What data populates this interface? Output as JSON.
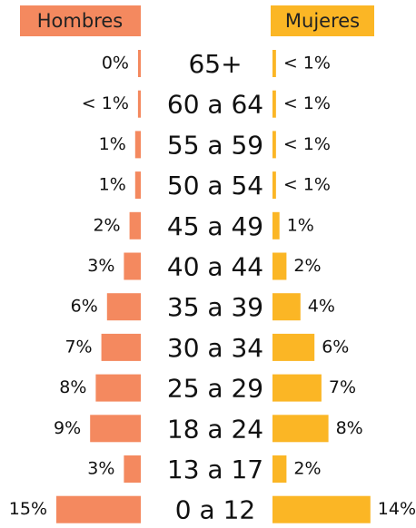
{
  "chart_data": {
    "type": "pyramid",
    "categories": [
      "65+",
      "60 a 64",
      "55 a 59",
      "50 a 54",
      "45 a 49",
      "40 a 44",
      "35 a 39",
      "30 a 34",
      "25 a 29",
      "18 a 24",
      "13 a 17",
      "0 a 12"
    ],
    "series": [
      {
        "name": "Hombres",
        "color": "#f4895f",
        "values": [
          0,
          0.5,
          1,
          1,
          2,
          3,
          6,
          7,
          8,
          9,
          3,
          15
        ],
        "value_labels": [
          "0%",
          "< 1%",
          "1%",
          "1%",
          "2%",
          "3%",
          "6%",
          "7%",
          "8%",
          "9%",
          "3%",
          "15%"
        ]
      },
      {
        "name": "Mujeres",
        "color": "#fbb625",
        "values": [
          0.5,
          0.5,
          0.5,
          0.5,
          1,
          2,
          4,
          6,
          7,
          8,
          2,
          14
        ],
        "value_labels": [
          "< 1%",
          "< 1%",
          "< 1%",
          "< 1%",
          "1%",
          "2%",
          "4%",
          "6%",
          "7%",
          "8%",
          "2%",
          "14%"
        ]
      }
    ]
  }
}
